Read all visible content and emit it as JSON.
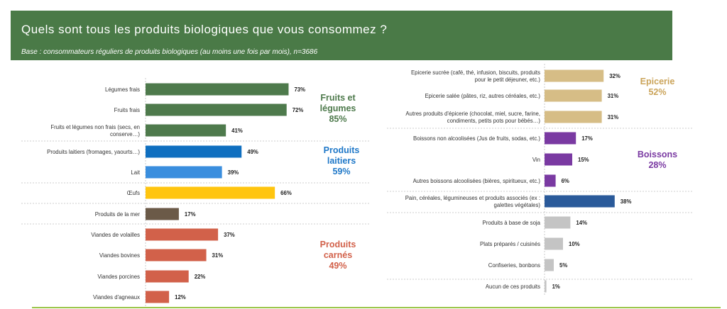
{
  "header": {
    "title": "Quels sont tous les produits biologiques que vous consommez ?",
    "subtitle": "Base : consommateurs réguliers de produits biologiques (au moins une fois par mois), n=3686"
  },
  "chart_data": [
    {
      "type": "bar",
      "orientation": "horizontal",
      "title": "Quels sont tous les produits biologiques que vous consommez ?",
      "unit": "%",
      "categories": [
        [
          "Légumes frais"
        ],
        [
          "Fruits frais"
        ],
        [
          "Fruits et légumes non frais (secs, en",
          "conserve…)"
        ],
        [
          "Produits laitiers (fromages, yaourts…)"
        ],
        [
          "Lait"
        ],
        [
          "Œufs"
        ],
        [
          "Produits de la mer"
        ],
        [
          "Viandes de volailles"
        ],
        [
          "Viandes bovines"
        ],
        [
          "Viandes porcines"
        ],
        [
          "Viandes d'agneaux"
        ]
      ],
      "values": [
        73,
        72,
        41,
        49,
        39,
        66,
        17,
        37,
        31,
        22,
        12
      ],
      "colors": [
        "#4e7a4c",
        "#4e7a4c",
        "#4e7a4c",
        "#0f6fc0",
        "#3a8ede",
        "#ffc50f",
        "#6b5a48",
        "#d2614a",
        "#d2614a",
        "#d2614a",
        "#d2614a"
      ],
      "groups": [
        {
          "lines": [
            "Fruits et",
            "légumes",
            "85%"
          ],
          "color": "#4e7a4c"
        },
        {
          "lines": [
            "Produits",
            "laitiers",
            "59%"
          ],
          "color": "#1f78c8"
        },
        {
          "lines": [
            "Produits",
            "carnés",
            "49%"
          ],
          "color": "#d2614a"
        }
      ]
    },
    {
      "type": "bar",
      "orientation": "horizontal",
      "unit": "%",
      "categories": [
        [
          "Epicerie sucrée (café, thé, infusion, biscuits, produits",
          "pour le petit déjeuner, etc.)"
        ],
        [
          "Epicerie salée (pâtes, riz, autres céréales, etc.)"
        ],
        [
          "Autres produits d'épicerie (chocolat, miel, sucre, farine,",
          "condiments, petits pots pour bébés…)"
        ],
        [
          "Boissons non alcoolisées (Jus de fruits, sodas, etc.)"
        ],
        [
          "Vin"
        ],
        [
          "Autres boissons alcoolisées (bières, spiritueux, etc.)"
        ],
        [
          "Pain, céréales, légumineuses et produits associés (ex :",
          "galettes végétales)"
        ],
        [
          "Produits à base de soja"
        ],
        [
          "Plats préparés / cuisinés"
        ],
        [
          "Confiseries, bonbons"
        ],
        [
          "Aucun de ces produits"
        ]
      ],
      "values": [
        32,
        31,
        31,
        17,
        15,
        6,
        38,
        14,
        10,
        5,
        1
      ],
      "colors": [
        "#d6bd86",
        "#d6bd86",
        "#d6bd86",
        "#7a3aa2",
        "#7a3aa2",
        "#7a3aa2",
        "#2a5a9a",
        "#c4c4c4",
        "#c4c4c4",
        "#c4c4c4",
        "#c4c4c4"
      ],
      "groups": [
        {
          "lines": [
            "Epicerie",
            "52%"
          ],
          "color": "#cba45a"
        },
        {
          "lines": [
            "Boissons",
            "28%"
          ],
          "color": "#7a3aa2"
        }
      ]
    }
  ]
}
